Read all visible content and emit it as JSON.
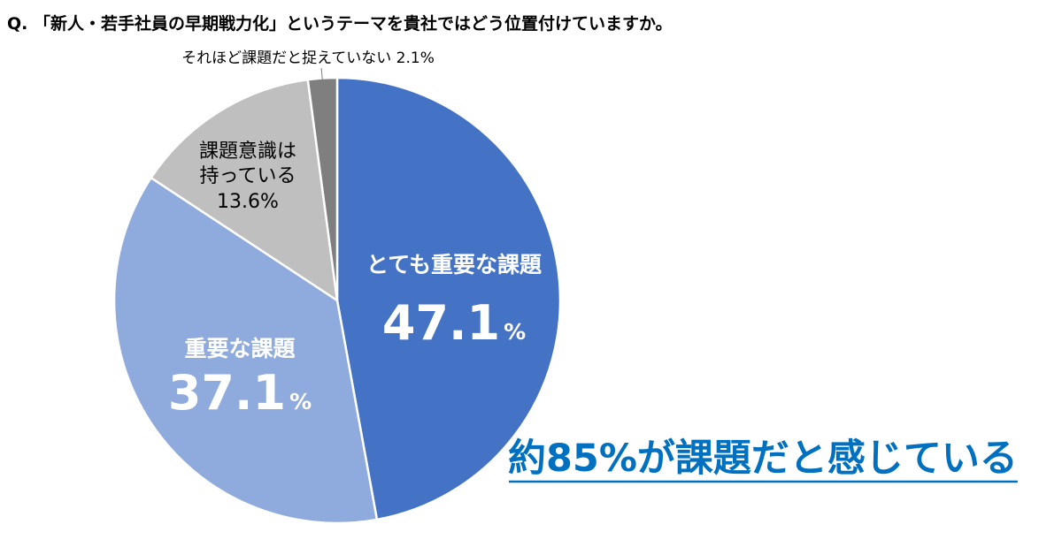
{
  "question": "Q. 「新人・若手社員の早期戦力化」というテーマを貴社ではどう位置付けていますか。",
  "conclusion": "約85%が課題だと感じている",
  "chart_data": {
    "type": "pie",
    "start_angle_deg": 0,
    "direction": "clockwise",
    "slices": [
      {
        "label_lines": [
          "とても重要な課題"
        ],
        "percent_text": "47.1",
        "unit": "%",
        "value": 47.1,
        "color": "#4472C4",
        "label_color": "#FFFFFF"
      },
      {
        "label_lines": [
          "重要な課題"
        ],
        "percent_text": "37.1",
        "unit": "%",
        "value": 37.1,
        "color": "#8FAADC",
        "label_color": "#FFFFFF"
      },
      {
        "label_lines": [
          "課題意識は",
          "持っている"
        ],
        "percent_text": "13.6%",
        "value": 13.6,
        "color": "#BFBFBF",
        "label_color": "#000000"
      },
      {
        "label_lines": [
          "それほど課題だと捉えていない"
        ],
        "percent_text": "2.1%",
        "value": 2.1,
        "color": "#7F7F7F",
        "label_color": "#000000"
      }
    ]
  },
  "colors": {
    "conclusion": "#0070C0",
    "text": "#000000",
    "slice_border": "#FFFFFF"
  }
}
